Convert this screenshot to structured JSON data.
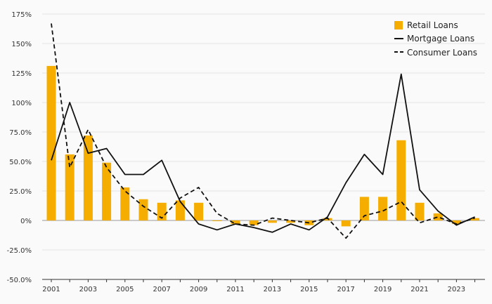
{
  "chart_data": {
    "type": "bar",
    "title": "",
    "xlabel": "",
    "ylabel": "",
    "ylim": [
      -50,
      175
    ],
    "y_ticks": [
      -50,
      -25,
      0,
      25,
      50,
      75,
      100,
      125,
      150,
      175
    ],
    "y_tick_labels": [
      "-50.0%",
      "-25.0%",
      "0%",
      "25.0%",
      "50.0%",
      "75.0%",
      "100%",
      "125%",
      "150%",
      "175%"
    ],
    "x_tick_labels": [
      "2001",
      "2003",
      "2005",
      "2007",
      "2009",
      "2011",
      "2013",
      "2015",
      "2017",
      "2019",
      "2021",
      "2023"
    ],
    "x": [
      2001,
      2002,
      2003,
      2004,
      2005,
      2006,
      2007,
      2008,
      2009,
      2010,
      2011,
      2012,
      2013,
      2014,
      2015,
      2016,
      2017,
      2018,
      2019,
      2020,
      2021,
      2022,
      2023,
      2024
    ],
    "grid": true,
    "legend_position": "top-right",
    "colors": {
      "retail": "#F5AD00",
      "lines": "#111111",
      "grid": "#e4e4e4",
      "background": "#fafafa"
    },
    "series": [
      {
        "name": "Retail Loans",
        "type": "bar",
        "values": [
          131,
          56,
          72,
          49,
          28,
          18,
          15,
          17,
          15,
          0,
          -3,
          -4,
          -2,
          -2,
          -4,
          2,
          -5,
          20,
          20,
          68,
          15,
          6,
          -3,
          2
        ]
      },
      {
        "name": "Mortgage Loans",
        "type": "line",
        "style": "solid",
        "values": [
          51,
          100,
          57,
          61,
          39,
          39,
          51,
          16,
          -3,
          -8,
          -3,
          -6,
          -10,
          -3,
          -8,
          3,
          32,
          56,
          39,
          124,
          26,
          8,
          -4,
          3
        ]
      },
      {
        "name": "Consumer Loans",
        "type": "line",
        "style": "dashed",
        "values": [
          167,
          45,
          77,
          45,
          25,
          12,
          2,
          19,
          28,
          6,
          -3,
          -4,
          2,
          0,
          -2,
          2,
          -15,
          4,
          8,
          16,
          -2,
          3,
          -3,
          2
        ]
      }
    ]
  }
}
